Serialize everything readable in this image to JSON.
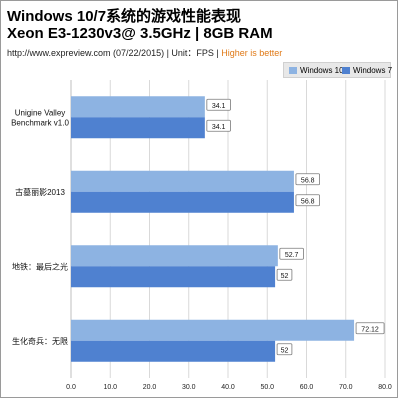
{
  "header": {
    "title_line1": "Windows 10/7系统的游戏性能表现",
    "title_line2": "Xeon E3-1230v3@ 3.5GHz | 8GB RAM",
    "source": "http://www.expreview.com (07/22/2015) | Unit：FPS |",
    "source_highlight": "Higher is better"
  },
  "colors": {
    "windows10": "#8db3e2",
    "windows7": "#4f81d0",
    "grid": "#d9d9d9",
    "label_border": "#7a7a7a"
  },
  "chart_data": {
    "type": "bar",
    "orientation": "horizontal",
    "categories": [
      [
        "Unigine Valley",
        "Benchmark v1.0"
      ],
      [
        "古墓丽影2013"
      ],
      [
        "地铁：最后之光"
      ],
      [
        "生化奇兵：无限"
      ]
    ],
    "series": [
      {
        "name": "Windows 10",
        "values": [
          34.1,
          56.8,
          52.7,
          72.12
        ],
        "labels": [
          "34.1",
          "56.8",
          "52.7",
          "72.12"
        ]
      },
      {
        "name": "Windows 7",
        "values": [
          34.1,
          56.8,
          52,
          52
        ],
        "labels": [
          "34.1",
          "56.8",
          "52",
          "52"
        ]
      }
    ],
    "xlim": [
      0,
      80
    ],
    "xticks": [
      0,
      10,
      20,
      30,
      40,
      50,
      60,
      70,
      80
    ],
    "xtick_labels": [
      "0.0",
      "10.0",
      "20.0",
      "30.0",
      "40.0",
      "50.0",
      "60.0",
      "70.0",
      "80.0"
    ],
    "grid": true,
    "legend_position": "top-right"
  }
}
